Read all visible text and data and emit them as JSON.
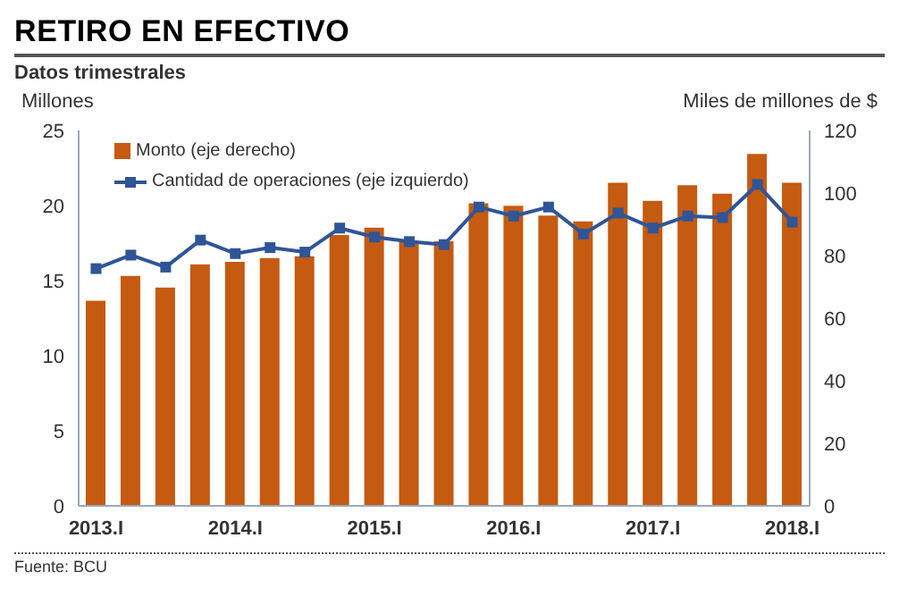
{
  "chart_data": {
    "type": "bar",
    "title": "RETIRO EN EFECTIVO",
    "subtitle": "Datos trimestrales",
    "ylabel": "Millones",
    "y2label": "Miles de millones de $",
    "categories": [
      "2013.I",
      null,
      null,
      null,
      "2014.I",
      null,
      null,
      null,
      "2015.I",
      null,
      null,
      null,
      "2016.I",
      null,
      null,
      null,
      "2017.I",
      null,
      null,
      null,
      "2018.I"
    ],
    "series": [
      {
        "name": "Monto (eje derecho)",
        "axis": "y2",
        "color": "#c55a11",
        "values": [
          65.6,
          73.5,
          69.8,
          77.2,
          78,
          79.2,
          79.8,
          86.6,
          88.9,
          84.6,
          84.6,
          96.7,
          95.9,
          92.8,
          90.9,
          103.3,
          97.5,
          102.5,
          99.8,
          112.5,
          103.3
        ]
      },
      {
        "name": "Cantidad de operaciones (eje izquierdo)",
        "type": "line",
        "axis": "y",
        "color": "#2f5597",
        "marker": "square",
        "values": [
          15.8,
          16.7,
          15.9,
          17.7,
          16.8,
          17.2,
          16.9,
          18.5,
          17.9,
          17.6,
          17.4,
          19.9,
          19.3,
          19.9,
          18.1,
          19.5,
          18.5,
          19.3,
          19.2,
          21.4,
          18.9
        ]
      }
    ],
    "ylim": [
      0,
      25
    ],
    "yticks": [
      0,
      5,
      10,
      15,
      20,
      25
    ],
    "y2lim": [
      0,
      120
    ],
    "y2ticks": [
      0,
      20,
      40,
      60,
      80,
      100,
      120
    ],
    "grid": false,
    "legend": "top left",
    "annotations": [
      "Fuente: BCU"
    ]
  }
}
